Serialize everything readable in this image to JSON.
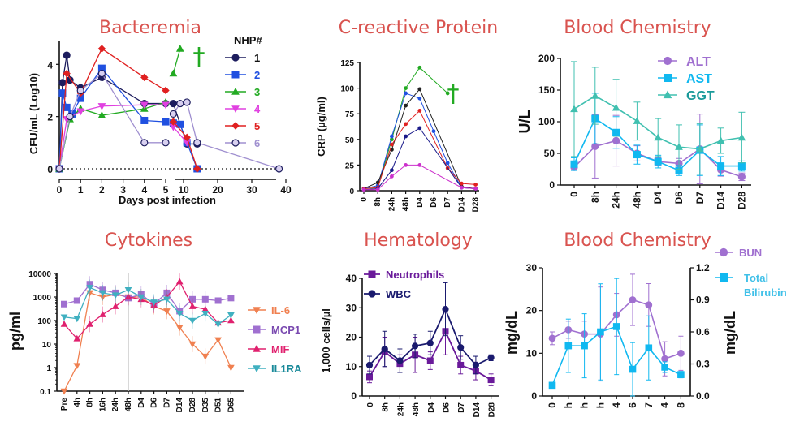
{
  "figure_title": "",
  "chart_data": [
    {
      "id": "bacteremia",
      "type": "scatter",
      "title": "Bacteremia",
      "xlabel": "Days post infection",
      "ylabel": "CFU/mL (Log10)",
      "xticks_left": [
        "0",
        "1",
        "2",
        "3",
        "4",
        "5"
      ],
      "xticks_right": [
        "10",
        "20",
        "30",
        "40"
      ],
      "yticks": [
        "0",
        "2",
        "4"
      ],
      "ylim": [
        0,
        5
      ],
      "legend_title": "NHP#",
      "legend_placement": "top-right",
      "dotted_baseline": 0,
      "annotation": "†",
      "series": [
        {
          "name": "1",
          "color": "#1d1d5e",
          "marker": "circle",
          "points": [
            [
              0,
              0
            ],
            [
              0.15,
              3.3
            ],
            [
              0.35,
              4.35
            ],
            [
              0.5,
              3.4
            ],
            [
              1,
              3.1
            ],
            [
              2,
              3.5
            ],
            [
              4,
              2.5
            ],
            [
              5,
              2.5
            ],
            [
              7,
              2.5
            ],
            [
              11,
              0.95
            ],
            [
              14,
              0.95
            ]
          ]
        },
        {
          "name": "2",
          "color": "#2050e0",
          "marker": "square",
          "points": [
            [
              0,
              0
            ],
            [
              0.15,
              2.9
            ],
            [
              0.35,
              2.35
            ],
            [
              0.6,
              2.1
            ],
            [
              1,
              2.7
            ],
            [
              2,
              3.85
            ],
            [
              4,
              1.85
            ],
            [
              5,
              1.8
            ],
            [
              7,
              1.75
            ],
            [
              9,
              1.7
            ],
            [
              11,
              1.0
            ],
            [
              14,
              0
            ]
          ]
        },
        {
          "name": "3",
          "color": "#22aa22",
          "marker": "triangle",
          "points": [
            [
              0,
              0
            ],
            [
              0.5,
              1.9
            ],
            [
              1,
              2.3
            ],
            [
              2,
              2.05
            ],
            [
              4,
              2.3
            ],
            [
              5,
              2.55
            ],
            [
              7,
              3.65
            ],
            [
              9,
              4.6
            ]
          ]
        },
        {
          "name": "4",
          "color": "#e040e0",
          "marker": "triangle-down",
          "points": [
            [
              0,
              0
            ],
            [
              0.35,
              1.9
            ],
            [
              1,
              2.2
            ],
            [
              2,
              2.4
            ],
            [
              4,
              2.45
            ],
            [
              5,
              2.45
            ],
            [
              7,
              1.6
            ],
            [
              11,
              1.0
            ]
          ]
        },
        {
          "name": "5",
          "color": "#e02020",
          "marker": "diamond",
          "points": [
            [
              0,
              0
            ],
            [
              0.35,
              3.65
            ],
            [
              1,
              2.9
            ],
            [
              2,
              4.6
            ],
            [
              4,
              3.5
            ],
            [
              5,
              3.0
            ],
            [
              7,
              1.8
            ],
            [
              11,
              1.2
            ],
            [
              14,
              0
            ]
          ]
        },
        {
          "name": "6",
          "color": "#a090d0",
          "marker": "circle",
          "points": [
            [
              0,
              0
            ],
            [
              0.5,
              2.0
            ],
            [
              1,
              3.0
            ],
            [
              2,
              3.65
            ],
            [
              4,
              1.0
            ],
            [
              5,
              1.0
            ],
            [
              7,
              2.1
            ],
            [
              9,
              2.5
            ],
            [
              11,
              2.55
            ],
            [
              14,
              1.0
            ],
            [
              38,
              0
            ]
          ]
        }
      ]
    },
    {
      "id": "crp",
      "type": "line",
      "title": "C-reactive Protein",
      "ylabel": "CRP (µg/ml)",
      "categories": [
        "0",
        "8h",
        "24h",
        "48h",
        "D4",
        "D6",
        "D7",
        "D14",
        "D28"
      ],
      "yticks": [
        "0",
        "25",
        "50",
        "75",
        "100",
        "125"
      ],
      "ylim": [
        0,
        125
      ],
      "annotation": "†",
      "series": [
        {
          "color": "#22aa22",
          "values": [
            2,
            3,
            50,
            100,
            120,
            null,
            95,
            null,
            null
          ]
        },
        {
          "color": "#2050e0",
          "values": [
            2,
            5,
            53,
            95,
            90,
            58,
            27,
            3,
            2
          ]
        },
        {
          "color": "#222222",
          "values": [
            2,
            8,
            40,
            83,
            99,
            null,
            null,
            4,
            2
          ]
        },
        {
          "color": "#e02020",
          "values": [
            2,
            3,
            45,
            65,
            78,
            null,
            22,
            7,
            6
          ]
        },
        {
          "color": "#1a1a8a",
          "values": [
            1,
            2,
            20,
            53,
            61,
            null,
            null,
            3,
            2
          ]
        },
        {
          "color": "#cc30cc",
          "values": [
            1,
            1,
            14,
            25,
            25,
            null,
            null,
            3,
            2
          ]
        }
      ]
    },
    {
      "id": "chem1",
      "type": "line",
      "title": "Blood Chemistry",
      "ylabel": "U/L",
      "categories": [
        "0",
        "8h",
        "24h",
        "48h",
        "D4",
        "D6",
        "D7",
        "D14",
        "D28"
      ],
      "yticks": [
        "0",
        "50",
        "100",
        "150",
        "200"
      ],
      "ylim": [
        0,
        200
      ],
      "legend_placement": "top-right",
      "series": [
        {
          "name": "ALT",
          "color": "#a070d0",
          "marker": "circle",
          "values": [
            28,
            61,
            70,
            50,
            37,
            34,
            57,
            24,
            13
          ],
          "err": [
            5,
            50,
            40,
            12,
            6,
            8,
            55,
            10,
            6
          ]
        },
        {
          "name": "AST",
          "color": "#10b8f0",
          "marker": "square",
          "values": [
            33,
            105,
            83,
            48,
            37,
            23,
            55,
            30,
            30
          ],
          "err": [
            10,
            40,
            25,
            15,
            10,
            8,
            40,
            15,
            8
          ]
        },
        {
          "name": "GGT",
          "color": "#40c0b0",
          "marker": "triangle",
          "values": [
            120,
            141,
            122,
            101,
            75,
            60,
            57,
            70,
            75
          ],
          "err": [
            75,
            45,
            45,
            30,
            30,
            35,
            40,
            20,
            40
          ]
        }
      ]
    },
    {
      "id": "cytokines",
      "type": "line",
      "title": "Cytokines",
      "ylabel": "pg/ml",
      "yscale": "log",
      "categories": [
        "Pre",
        "4h",
        "8h",
        "16h",
        "24h",
        "48h",
        "D4",
        "D6",
        "D7",
        "D14",
        "D28",
        "D35",
        "D51",
        "D65"
      ],
      "yticks": [
        "0.1",
        "1",
        "10",
        "100",
        "1000",
        "10000"
      ],
      "ylim": [
        0.1,
        10000
      ],
      "legend_placement": "right",
      "series": [
        {
          "name": "IL-6",
          "color": "#f08050",
          "marker": "triangle-down",
          "values": [
            0.1,
            1.2,
            1500,
            1000,
            1300,
            1000,
            1000,
            400,
            250,
            50,
            10,
            3,
            15,
            1
          ]
        },
        {
          "name": "MCP1",
          "color": "#a070d0",
          "marker": "square",
          "values": [
            500,
            700,
            3500,
            2000,
            1500,
            900,
            1300,
            500,
            1500,
            250,
            800,
            800,
            700,
            900
          ]
        },
        {
          "name": "MIF",
          "color": "#e0206e",
          "marker": "triangle",
          "values": [
            70,
            17,
            70,
            180,
            400,
            1000,
            800,
            450,
            1000,
            4500,
            400,
            300,
            80,
            100
          ]
        },
        {
          "name": "IL1RA",
          "color": "#40b0c0",
          "marker": "triangle-down",
          "values": [
            140,
            120,
            2500,
            1500,
            1200,
            2000,
            1000,
            600,
            800,
            200,
            100,
            200,
            70,
            170
          ]
        }
      ]
    },
    {
      "id": "hematology",
      "type": "line",
      "title": "Hematology",
      "ylabel": "1,000 cells/µl",
      "categories": [
        "0",
        "8h",
        "24h",
        "48h",
        "D4",
        "D6",
        "D7",
        "D14",
        "D28"
      ],
      "yticks": [
        "0",
        "10",
        "20",
        "30",
        "40"
      ],
      "ylim": [
        0,
        40
      ],
      "legend_placement": "top-left",
      "series": [
        {
          "name": "Neutrophils",
          "color": "#6a1a9a",
          "marker": "square",
          "values": [
            6.5,
            15,
            11,
            14,
            12,
            22,
            10.5,
            8.5,
            5.5
          ],
          "err": [
            2,
            5,
            3,
            6,
            3,
            8,
            3,
            3,
            2
          ]
        },
        {
          "name": "WBC",
          "color": "#1a1a6e",
          "marker": "circle",
          "values": [
            10.5,
            16,
            12,
            17,
            18,
            29.5,
            16.5,
            10.5,
            13
          ],
          "err": [
            3,
            6,
            4,
            4,
            4,
            9,
            4,
            3,
            1
          ]
        }
      ]
    },
    {
      "id": "chem2",
      "type": "line",
      "title": "Blood Chemistry",
      "ylabel": "mg/dL",
      "ylabel_right": "mg/dL",
      "categories": [
        "0",
        "h",
        "h",
        "h",
        "4",
        "6",
        "7",
        "4",
        "8"
      ],
      "yticks": [
        "0",
        "10",
        "20",
        "30"
      ],
      "yticks_right": [
        "0.0",
        "0.3",
        "0.6",
        "0.9",
        "1.2"
      ],
      "ylim": [
        0,
        30
      ],
      "ylim_right": [
        0,
        1.2
      ],
      "legend_placement": "right",
      "series": [
        {
          "name": "BUN",
          "color": "#a070d0",
          "marker": "circle",
          "axis": "left",
          "values": [
            13.5,
            15.5,
            14.5,
            14.5,
            19,
            22.5,
            21.3,
            8.7,
            10
          ],
          "err": [
            1.5,
            2,
            3,
            11,
            5,
            6,
            5,
            4,
            4
          ]
        },
        {
          "name": "Total Bilirubin",
          "color": "#10b8f0",
          "marker": "square",
          "axis": "right",
          "values": [
            0.1,
            0.47,
            0.47,
            0.6,
            0.65,
            0.25,
            0.45,
            0.27,
            0.2
          ],
          "err": [
            0,
            0.25,
            0.3,
            0.45,
            0.45,
            0.25,
            0.3,
            0.05,
            0.03
          ]
        }
      ]
    }
  ]
}
